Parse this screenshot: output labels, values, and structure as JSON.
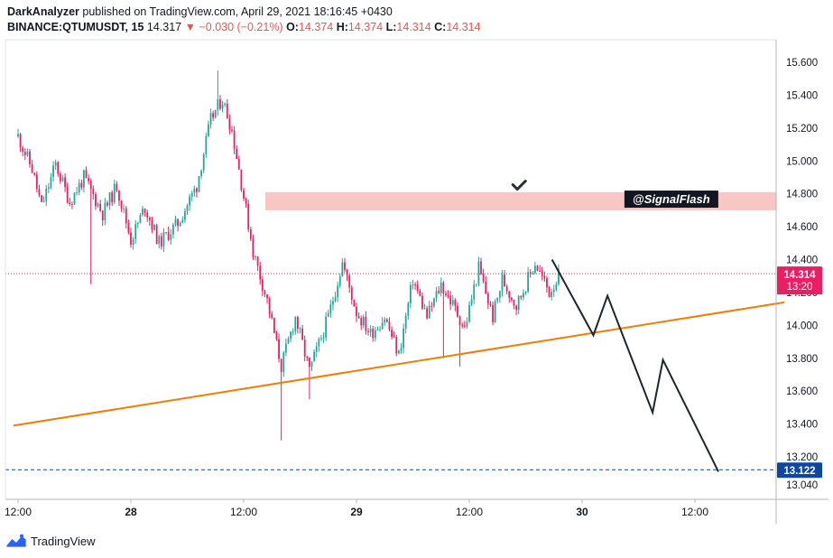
{
  "header": {
    "author": "DarkAnalyzer",
    "published": "published on TradingView.com, April 29, 2021 18:16:45 +0430",
    "symbol": "BINANCE:QTUMUSDT, 15",
    "last": "14.317",
    "change_arrow": "▼",
    "change": "−0.030 (−0.21%)",
    "open_label": "O:",
    "open": "14.374",
    "high_label": "H:",
    "high": "14.374",
    "low_label": "L:",
    "low": "14.314",
    "close_label": "C:",
    "close": "14.314"
  },
  "footer": {
    "brand": "TradingView",
    "logo_icon": "tradingview-logo-icon"
  },
  "colors": {
    "up": "#26a69a",
    "down": "#e91e63",
    "trendline": "#f57c00",
    "resistance": "#f8c6c4",
    "projection": "#1f2430",
    "price_badge": "#e91e63",
    "target_badge": "#0d47a1"
  },
  "chart_data": {
    "type": "candlestick",
    "symbol": "BINANCE:QTUMUSDT, 15",
    "y_range": [
      13.0,
      15.72
    ],
    "y_ticks": [
      "15.600",
      "15.400",
      "15.200",
      "15.000",
      "14.800",
      "14.600",
      "14.400",
      "14.200",
      "14.000",
      "13.800",
      "13.600",
      "13.400",
      "13.200",
      "13.040"
    ],
    "x_ticks": [
      "12:00",
      "28",
      "12:00",
      "29",
      "12:00",
      "30",
      "12:00"
    ],
    "x_tick_positions_hours": [
      0,
      12,
      24,
      36,
      48,
      60,
      72
    ],
    "x_range_hours": [
      -0.5,
      81.5
    ],
    "candle_interval_minutes": 15,
    "waypoints": [
      [
        0,
        15.15
      ],
      [
        1.5,
        14.95
      ],
      [
        2.5,
        14.72
      ],
      [
        4,
        14.98
      ],
      [
        5.5,
        14.75
      ],
      [
        7,
        14.9
      ],
      [
        9,
        14.68
      ],
      [
        10.5,
        14.85
      ],
      [
        12,
        14.52
      ],
      [
        13.5,
        14.72
      ],
      [
        15,
        14.5
      ],
      [
        17,
        14.62
      ],
      [
        19,
        14.85
      ],
      [
        20.5,
        15.25
      ],
      [
        21.7,
        15.38
      ],
      [
        22.7,
        15.2
      ],
      [
        23.5,
        14.95
      ],
      [
        25,
        14.45
      ],
      [
        26.5,
        14.15
      ],
      [
        28,
        13.75
      ],
      [
        29.5,
        14.05
      ],
      [
        31,
        13.72
      ],
      [
        33,
        14.05
      ],
      [
        34.5,
        14.38
      ],
      [
        36,
        14.08
      ],
      [
        37.5,
        13.95
      ],
      [
        39,
        14.05
      ],
      [
        40.5,
        13.82
      ],
      [
        42,
        14.28
      ],
      [
        43.5,
        14.05
      ],
      [
        45,
        14.25
      ],
      [
        46.5,
        14.1
      ],
      [
        47.5,
        13.98
      ],
      [
        49,
        14.35
      ],
      [
        50.5,
        14.05
      ],
      [
        51.5,
        14.28
      ],
      [
        53,
        14.12
      ],
      [
        55,
        14.38
      ],
      [
        56.5,
        14.2
      ],
      [
        57.5,
        14.3
      ]
    ],
    "resistance_zone": {
      "from_hour": 26.3,
      "price_low": 14.7,
      "price_high": 14.81
    },
    "trendline": {
      "p1": [
        -0.5,
        13.39
      ],
      "p2": [
        81.5,
        14.14
      ]
    },
    "horizontal_levels": [
      {
        "price": 14.314,
        "style": "dotted",
        "color": "#e91e63"
      },
      {
        "price": 13.122,
        "style": "dashed",
        "color": "#0d47a1"
      }
    ],
    "projection_path": [
      [
        56.8,
        14.4
      ],
      [
        61.2,
        13.94
      ],
      [
        62.7,
        14.18
      ],
      [
        67.5,
        13.47
      ],
      [
        68.6,
        13.79
      ],
      [
        74.5,
        13.11
      ]
    ],
    "checkmark": {
      "hour": 53.3,
      "price": 14.85
    },
    "label": {
      "text": "@SignalFlash",
      "hour": 69.3,
      "price": 14.71
    },
    "price_badge": {
      "price": "14.314",
      "countdown": "13:20"
    },
    "target_badge": {
      "price": "13.122"
    }
  }
}
